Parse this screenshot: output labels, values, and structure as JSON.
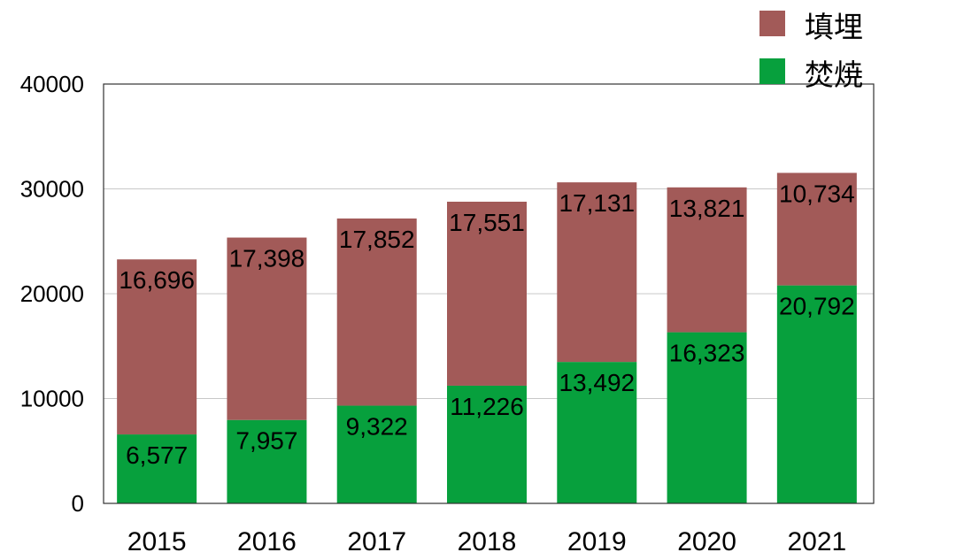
{
  "chart_data": {
    "type": "bar",
    "stacked": true,
    "categories": [
      "2015",
      "2016",
      "2017",
      "2018",
      "2019",
      "2020",
      "2021"
    ],
    "series": [
      {
        "name": "焚焼",
        "color": "#07a03d",
        "values": [
          6577,
          7957,
          9322,
          11226,
          13492,
          16323,
          20792
        ],
        "labels": [
          "6,577",
          "7,957",
          "9,322",
          "11,226",
          "13,492",
          "16,323",
          "20,792"
        ]
      },
      {
        "name": "填埋",
        "color": "#a25a58",
        "values": [
          16696,
          17398,
          17852,
          17551,
          17131,
          13821,
          10734
        ],
        "labels": [
          "16,696",
          "17,398",
          "17,852",
          "17,551",
          "17,131",
          "13,821",
          "10,734"
        ]
      }
    ],
    "legend": {
      "position": "top-right",
      "items": [
        "填埋",
        "焚焼"
      ]
    },
    "ylim": [
      0,
      40000
    ],
    "yticks": [
      "0",
      "10000",
      "20000",
      "30000",
      "40000"
    ],
    "grid": true,
    "title": "",
    "xlabel": "",
    "ylabel": ""
  }
}
